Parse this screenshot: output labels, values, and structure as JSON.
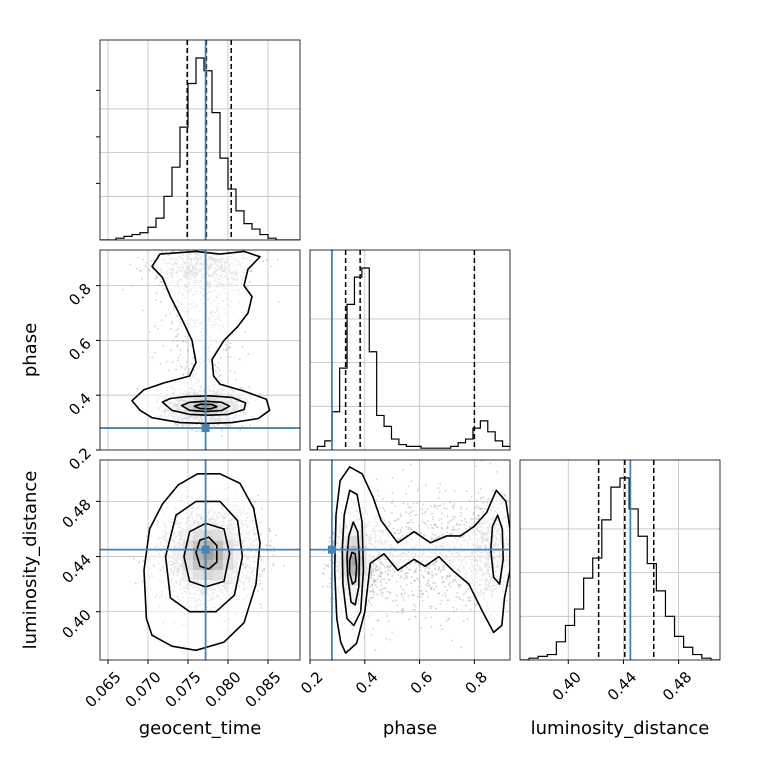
{
  "chart_data": {
    "type": "corner",
    "parameters": [
      "geocent_time",
      "phase",
      "luminosity_distance"
    ],
    "truths": {
      "geocent_time": 0.0772,
      "phase": 0.28,
      "luminosity_distance": 0.445
    },
    "colors": {
      "truth": "#4682b4",
      "hist": "#000000",
      "grid": "#c0c0c0",
      "scatter": "#9a9a9a"
    },
    "ranges": {
      "geocent_time": [
        0.064,
        0.089
      ],
      "phase": [
        0.2,
        0.93
      ],
      "luminosity_distance": [
        0.365,
        0.51
      ]
    },
    "ticks": {
      "geocent_time": [
        "0.065",
        "0.070",
        "0.075",
        "0.080",
        "0.085"
      ],
      "phase": [
        "0.2",
        "0.4",
        "0.6",
        "0.8"
      ],
      "luminosity_distance": [
        "0.40",
        "0.44",
        "0.48"
      ]
    },
    "quantiles": {
      "geocent_time": [
        0.0749,
        0.0773,
        0.0804
      ],
      "phase": [
        0.33,
        0.383,
        0.8
      ],
      "luminosity_distance": [
        0.422,
        0.441,
        0.462
      ]
    },
    "histograms": {
      "geocent_time": {
        "edges_range": [
          0.064,
          0.089
        ],
        "counts": [
          0,
          0,
          1,
          2,
          3,
          4,
          7,
          12,
          24,
          40,
          62,
          86,
          100,
          93,
          70,
          45,
          28,
          16,
          9,
          6,
          3,
          1,
          0,
          0,
          0
        ]
      },
      "phase": {
        "edges_range": [
          0.2,
          0.93
        ],
        "counts": [
          0,
          2,
          5,
          21,
          45,
          80,
          95,
          100,
          54,
          19,
          13,
          6,
          3,
          2,
          2,
          1,
          1,
          1,
          1,
          2,
          4,
          6,
          12,
          16,
          10,
          5,
          2
        ]
      },
      "luminosity_distance": {
        "edges_range": [
          0.365,
          0.51
        ],
        "counts": [
          0,
          1,
          2,
          3,
          10,
          19,
          28,
          45,
          56,
          77,
          95,
          100,
          83,
          68,
          53,
          38,
          24,
          13,
          7,
          3,
          1,
          0
        ]
      }
    },
    "samples": [
      {
        "name": "geocent_time-phase",
        "x": "geocent_time",
        "y": "phase",
        "modes": [
          {
            "mx": 0.0772,
            "my": 0.358,
            "sx": 0.0022,
            "sy": 0.03,
            "w": 0.75
          },
          {
            "mx": 0.0765,
            "my": 0.87,
            "sx": 0.003,
            "sy": 0.04,
            "w": 0.25
          }
        ]
      },
      {
        "name": "geocent_time-luminosity_distance",
        "x": "geocent_time",
        "y": "luminosity_distance",
        "modes": [
          {
            "mx": 0.0775,
            "my": 0.441,
            "sx": 0.0028,
            "sy": 0.016,
            "w": 1.0
          }
        ]
      },
      {
        "name": "phase-luminosity_distance",
        "x": "phase",
        "y": "luminosity_distance",
        "modes": [
          {
            "mx": 0.36,
            "my": 0.437,
            "sx": 0.04,
            "sy": 0.016,
            "w": 0.7
          },
          {
            "mx": 0.87,
            "my": 0.445,
            "sx": 0.04,
            "sy": 0.018,
            "w": 0.3
          }
        ]
      }
    ],
    "contours": {
      "geocent_time-phase": [
        [
          [
            0.068,
            0.38
          ],
          [
            0.069,
            0.345
          ],
          [
            0.0705,
            0.318
          ],
          [
            0.074,
            0.3
          ],
          [
            0.0772,
            0.297
          ],
          [
            0.0805,
            0.3
          ],
          [
            0.0838,
            0.315
          ],
          [
            0.0852,
            0.345
          ],
          [
            0.0848,
            0.385
          ],
          [
            0.082,
            0.415
          ],
          [
            0.079,
            0.44
          ],
          [
            0.0782,
            0.47
          ],
          [
            0.078,
            0.53
          ],
          [
            0.0795,
            0.6
          ],
          [
            0.0812,
            0.65
          ],
          [
            0.0825,
            0.7
          ],
          [
            0.083,
            0.76
          ],
          [
            0.082,
            0.8
          ],
          [
            0.0825,
            0.86
          ],
          [
            0.084,
            0.905
          ],
          [
            0.082,
            0.925
          ],
          [
            0.079,
            0.915
          ],
          [
            0.076,
            0.925
          ],
          [
            0.0715,
            0.915
          ],
          [
            0.0705,
            0.87
          ],
          [
            0.0718,
            0.83
          ],
          [
            0.0728,
            0.76
          ],
          [
            0.0742,
            0.68
          ],
          [
            0.0755,
            0.6
          ],
          [
            0.076,
            0.52
          ],
          [
            0.0752,
            0.47
          ],
          [
            0.072,
            0.445
          ],
          [
            0.0695,
            0.42
          ]
        ],
        [
          [
            0.0718,
            0.375
          ],
          [
            0.073,
            0.345
          ],
          [
            0.0752,
            0.33
          ],
          [
            0.0775,
            0.327
          ],
          [
            0.08,
            0.33
          ],
          [
            0.082,
            0.348
          ],
          [
            0.0822,
            0.372
          ],
          [
            0.0805,
            0.392
          ],
          [
            0.0778,
            0.398
          ],
          [
            0.0748,
            0.395
          ],
          [
            0.0728,
            0.388
          ]
        ],
        [
          [
            0.0742,
            0.362
          ],
          [
            0.0752,
            0.345
          ],
          [
            0.0772,
            0.34
          ],
          [
            0.0792,
            0.344
          ],
          [
            0.0802,
            0.36
          ],
          [
            0.0792,
            0.374
          ],
          [
            0.0772,
            0.378
          ],
          [
            0.0752,
            0.374
          ]
        ],
        [
          [
            0.0758,
            0.36
          ],
          [
            0.0765,
            0.351
          ],
          [
            0.0778,
            0.35
          ],
          [
            0.0786,
            0.358
          ],
          [
            0.078,
            0.366
          ],
          [
            0.0766,
            0.367
          ]
        ]
      ],
      "geocent_time-luminosity_distance": [
        [
          [
            0.0698,
            0.395
          ],
          [
            0.0705,
            0.383
          ],
          [
            0.073,
            0.375
          ],
          [
            0.076,
            0.372
          ],
          [
            0.0795,
            0.378
          ],
          [
            0.082,
            0.392
          ],
          [
            0.0835,
            0.42
          ],
          [
            0.084,
            0.45
          ],
          [
            0.0832,
            0.475
          ],
          [
            0.0815,
            0.493
          ],
          [
            0.079,
            0.5
          ],
          [
            0.0762,
            0.5
          ],
          [
            0.0738,
            0.492
          ],
          [
            0.0718,
            0.478
          ],
          [
            0.0702,
            0.46
          ],
          [
            0.0695,
            0.43
          ]
        ],
        [
          [
            0.0722,
            0.44
          ],
          [
            0.0728,
            0.41
          ],
          [
            0.0752,
            0.4
          ],
          [
            0.0785,
            0.4
          ],
          [
            0.0808,
            0.412
          ],
          [
            0.0818,
            0.44
          ],
          [
            0.0812,
            0.466
          ],
          [
            0.079,
            0.48
          ],
          [
            0.076,
            0.48
          ],
          [
            0.0735,
            0.47
          ]
        ],
        [
          [
            0.0745,
            0.44
          ],
          [
            0.0752,
            0.422
          ],
          [
            0.0772,
            0.418
          ],
          [
            0.0795,
            0.422
          ],
          [
            0.0802,
            0.442
          ],
          [
            0.0795,
            0.46
          ],
          [
            0.0772,
            0.464
          ],
          [
            0.0752,
            0.458
          ]
        ],
        [
          [
            0.076,
            0.443
          ],
          [
            0.0765,
            0.433
          ],
          [
            0.0776,
            0.431
          ],
          [
            0.0786,
            0.436
          ],
          [
            0.0786,
            0.448
          ],
          [
            0.0776,
            0.454
          ],
          [
            0.0765,
            0.452
          ]
        ]
      ],
      "phase-luminosity_distance": [
        [
          [
            0.33,
            0.37
          ],
          [
            0.37,
            0.377
          ],
          [
            0.4,
            0.4
          ],
          [
            0.42,
            0.435
          ],
          [
            0.47,
            0.442
          ],
          [
            0.52,
            0.43
          ],
          [
            0.58,
            0.438
          ],
          [
            0.62,
            0.433
          ],
          [
            0.67,
            0.44
          ],
          [
            0.72,
            0.43
          ],
          [
            0.78,
            0.42
          ],
          [
            0.83,
            0.4
          ],
          [
            0.87,
            0.385
          ],
          [
            0.9,
            0.39
          ],
          [
            0.91,
            0.41
          ],
          [
            0.93,
            0.43
          ],
          [
            0.93,
            0.46
          ],
          [
            0.915,
            0.48
          ],
          [
            0.88,
            0.488
          ],
          [
            0.845,
            0.472
          ],
          [
            0.8,
            0.462
          ],
          [
            0.75,
            0.455
          ],
          [
            0.7,
            0.455
          ],
          [
            0.64,
            0.45
          ],
          [
            0.58,
            0.458
          ],
          [
            0.52,
            0.45
          ],
          [
            0.46,
            0.466
          ],
          [
            0.43,
            0.483
          ],
          [
            0.39,
            0.5
          ],
          [
            0.345,
            0.505
          ],
          [
            0.31,
            0.495
          ],
          [
            0.295,
            0.47
          ],
          [
            0.29,
            0.43
          ],
          [
            0.298,
            0.395
          ],
          [
            0.312,
            0.378
          ]
        ],
        [
          [
            0.32,
            0.42
          ],
          [
            0.335,
            0.395
          ],
          [
            0.36,
            0.39
          ],
          [
            0.385,
            0.4
          ],
          [
            0.395,
            0.43
          ],
          [
            0.39,
            0.465
          ],
          [
            0.372,
            0.485
          ],
          [
            0.345,
            0.488
          ],
          [
            0.325,
            0.47
          ],
          [
            0.318,
            0.445
          ]
        ],
        [
          [
            0.338,
            0.425
          ],
          [
            0.35,
            0.407
          ],
          [
            0.365,
            0.405
          ],
          [
            0.378,
            0.418
          ],
          [
            0.38,
            0.44
          ],
          [
            0.374,
            0.458
          ],
          [
            0.358,
            0.465
          ],
          [
            0.342,
            0.455
          ],
          [
            0.335,
            0.44
          ]
        ],
        [
          [
            0.345,
            0.428
          ],
          [
            0.355,
            0.42
          ],
          [
            0.366,
            0.422
          ],
          [
            0.37,
            0.432
          ],
          [
            0.365,
            0.442
          ],
          [
            0.353,
            0.443
          ],
          [
            0.345,
            0.437
          ]
        ],
        [
          [
            0.86,
            0.445
          ],
          [
            0.87,
            0.425
          ],
          [
            0.892,
            0.42
          ],
          [
            0.905,
            0.438
          ],
          [
            0.902,
            0.46
          ],
          [
            0.885,
            0.47
          ],
          [
            0.866,
            0.462
          ]
        ]
      ]
    }
  }
}
